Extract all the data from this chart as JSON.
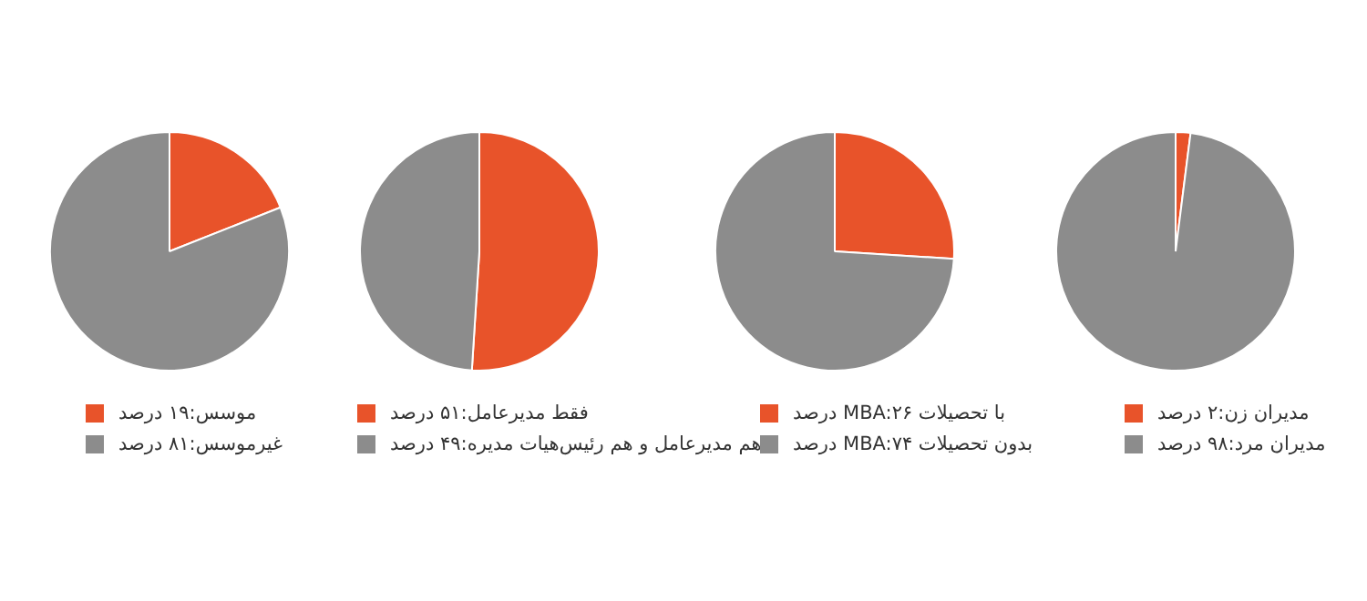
{
  "chart_data": [
    {
      "type": "pie",
      "categories": [
        "موسس:۱۹ درصد",
        "غیرموسس:۸۱ درصد"
      ],
      "values": [
        19,
        81
      ],
      "colors": [
        "#e8532a",
        "#8c8c8c"
      ],
      "legend": "bottom"
    },
    {
      "type": "pie",
      "categories": [
        "فقط مدیرعامل:۵۱ درصد",
        "هم مدیرعامل و هم رئیس‌هیات مدیره:۴۹ درصد"
      ],
      "values": [
        51,
        49
      ],
      "colors": [
        "#e8532a",
        "#8c8c8c"
      ],
      "legend": "bottom"
    },
    {
      "type": "pie",
      "categories": [
        "با تحصیلات MBA:۲۶ درصد",
        "بدون تحصیلات MBA:۷۴ درصد"
      ],
      "values": [
        26,
        74
      ],
      "colors": [
        "#e8532a",
        "#8c8c8c"
      ],
      "legend": "bottom"
    },
    {
      "type": "pie",
      "categories": [
        "مدیران زن:۲ درصد",
        "مدیران مرد:۹۸ درصد"
      ],
      "values": [
        2,
        98
      ],
      "colors": [
        "#e8532a",
        "#8c8c8c"
      ],
      "legend": "bottom"
    }
  ]
}
